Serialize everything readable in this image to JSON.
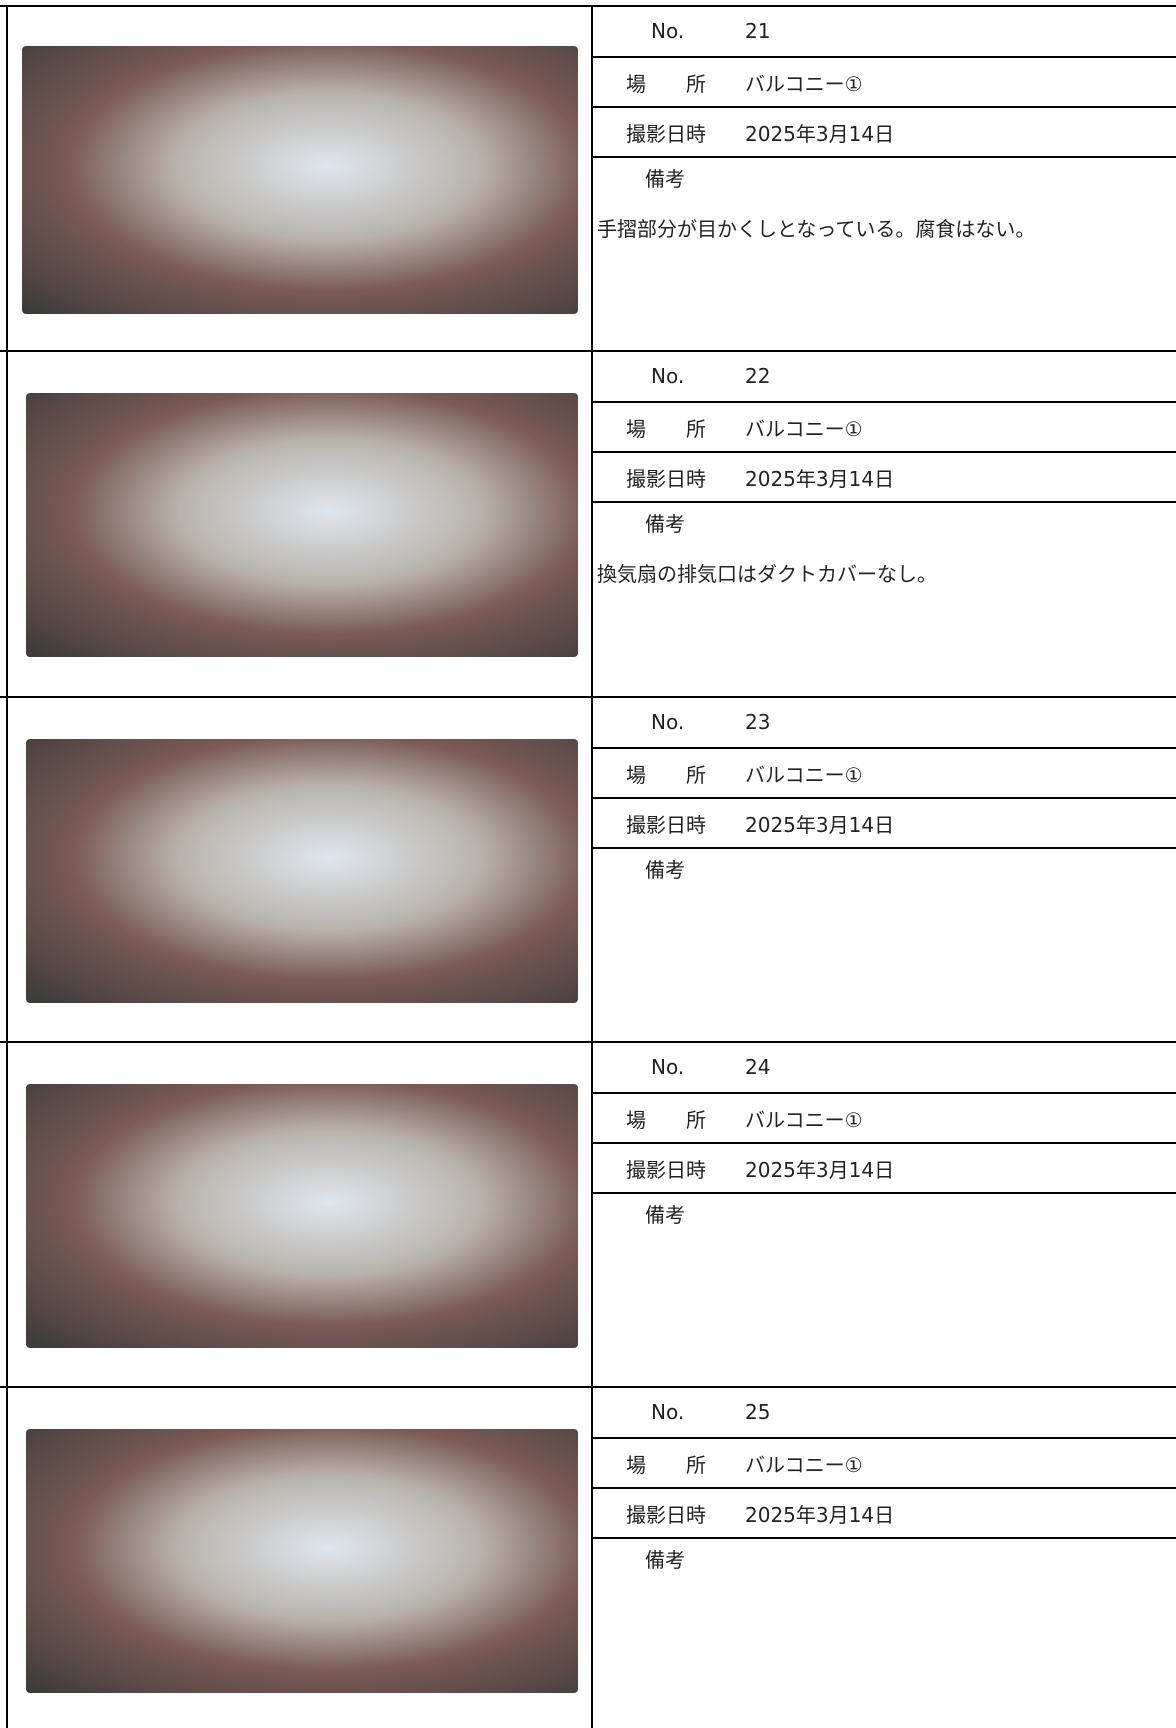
{
  "labels": {
    "no": "No.",
    "location": "場　　所",
    "date": "撮影日時",
    "remarks": "備考"
  },
  "rows": [
    {
      "no": "21",
      "location": "バルコニー①",
      "date": "2025年3月14日",
      "remarks": "手摺部分が目かくしとなっている。腐食はない。"
    },
    {
      "no": "22",
      "location": "バルコニー①",
      "date": "2025年3月14日",
      "remarks": "換気扇の排気口はダクトカバーなし。"
    },
    {
      "no": "23",
      "location": "バルコニー①",
      "date": "2025年3月14日"
    },
    {
      "no": "24",
      "location": "バルコニー①",
      "date": "2025年3月14日"
    },
    {
      "no": "25",
      "location": "バルコニー①",
      "date": "2025年3月14日"
    }
  ]
}
